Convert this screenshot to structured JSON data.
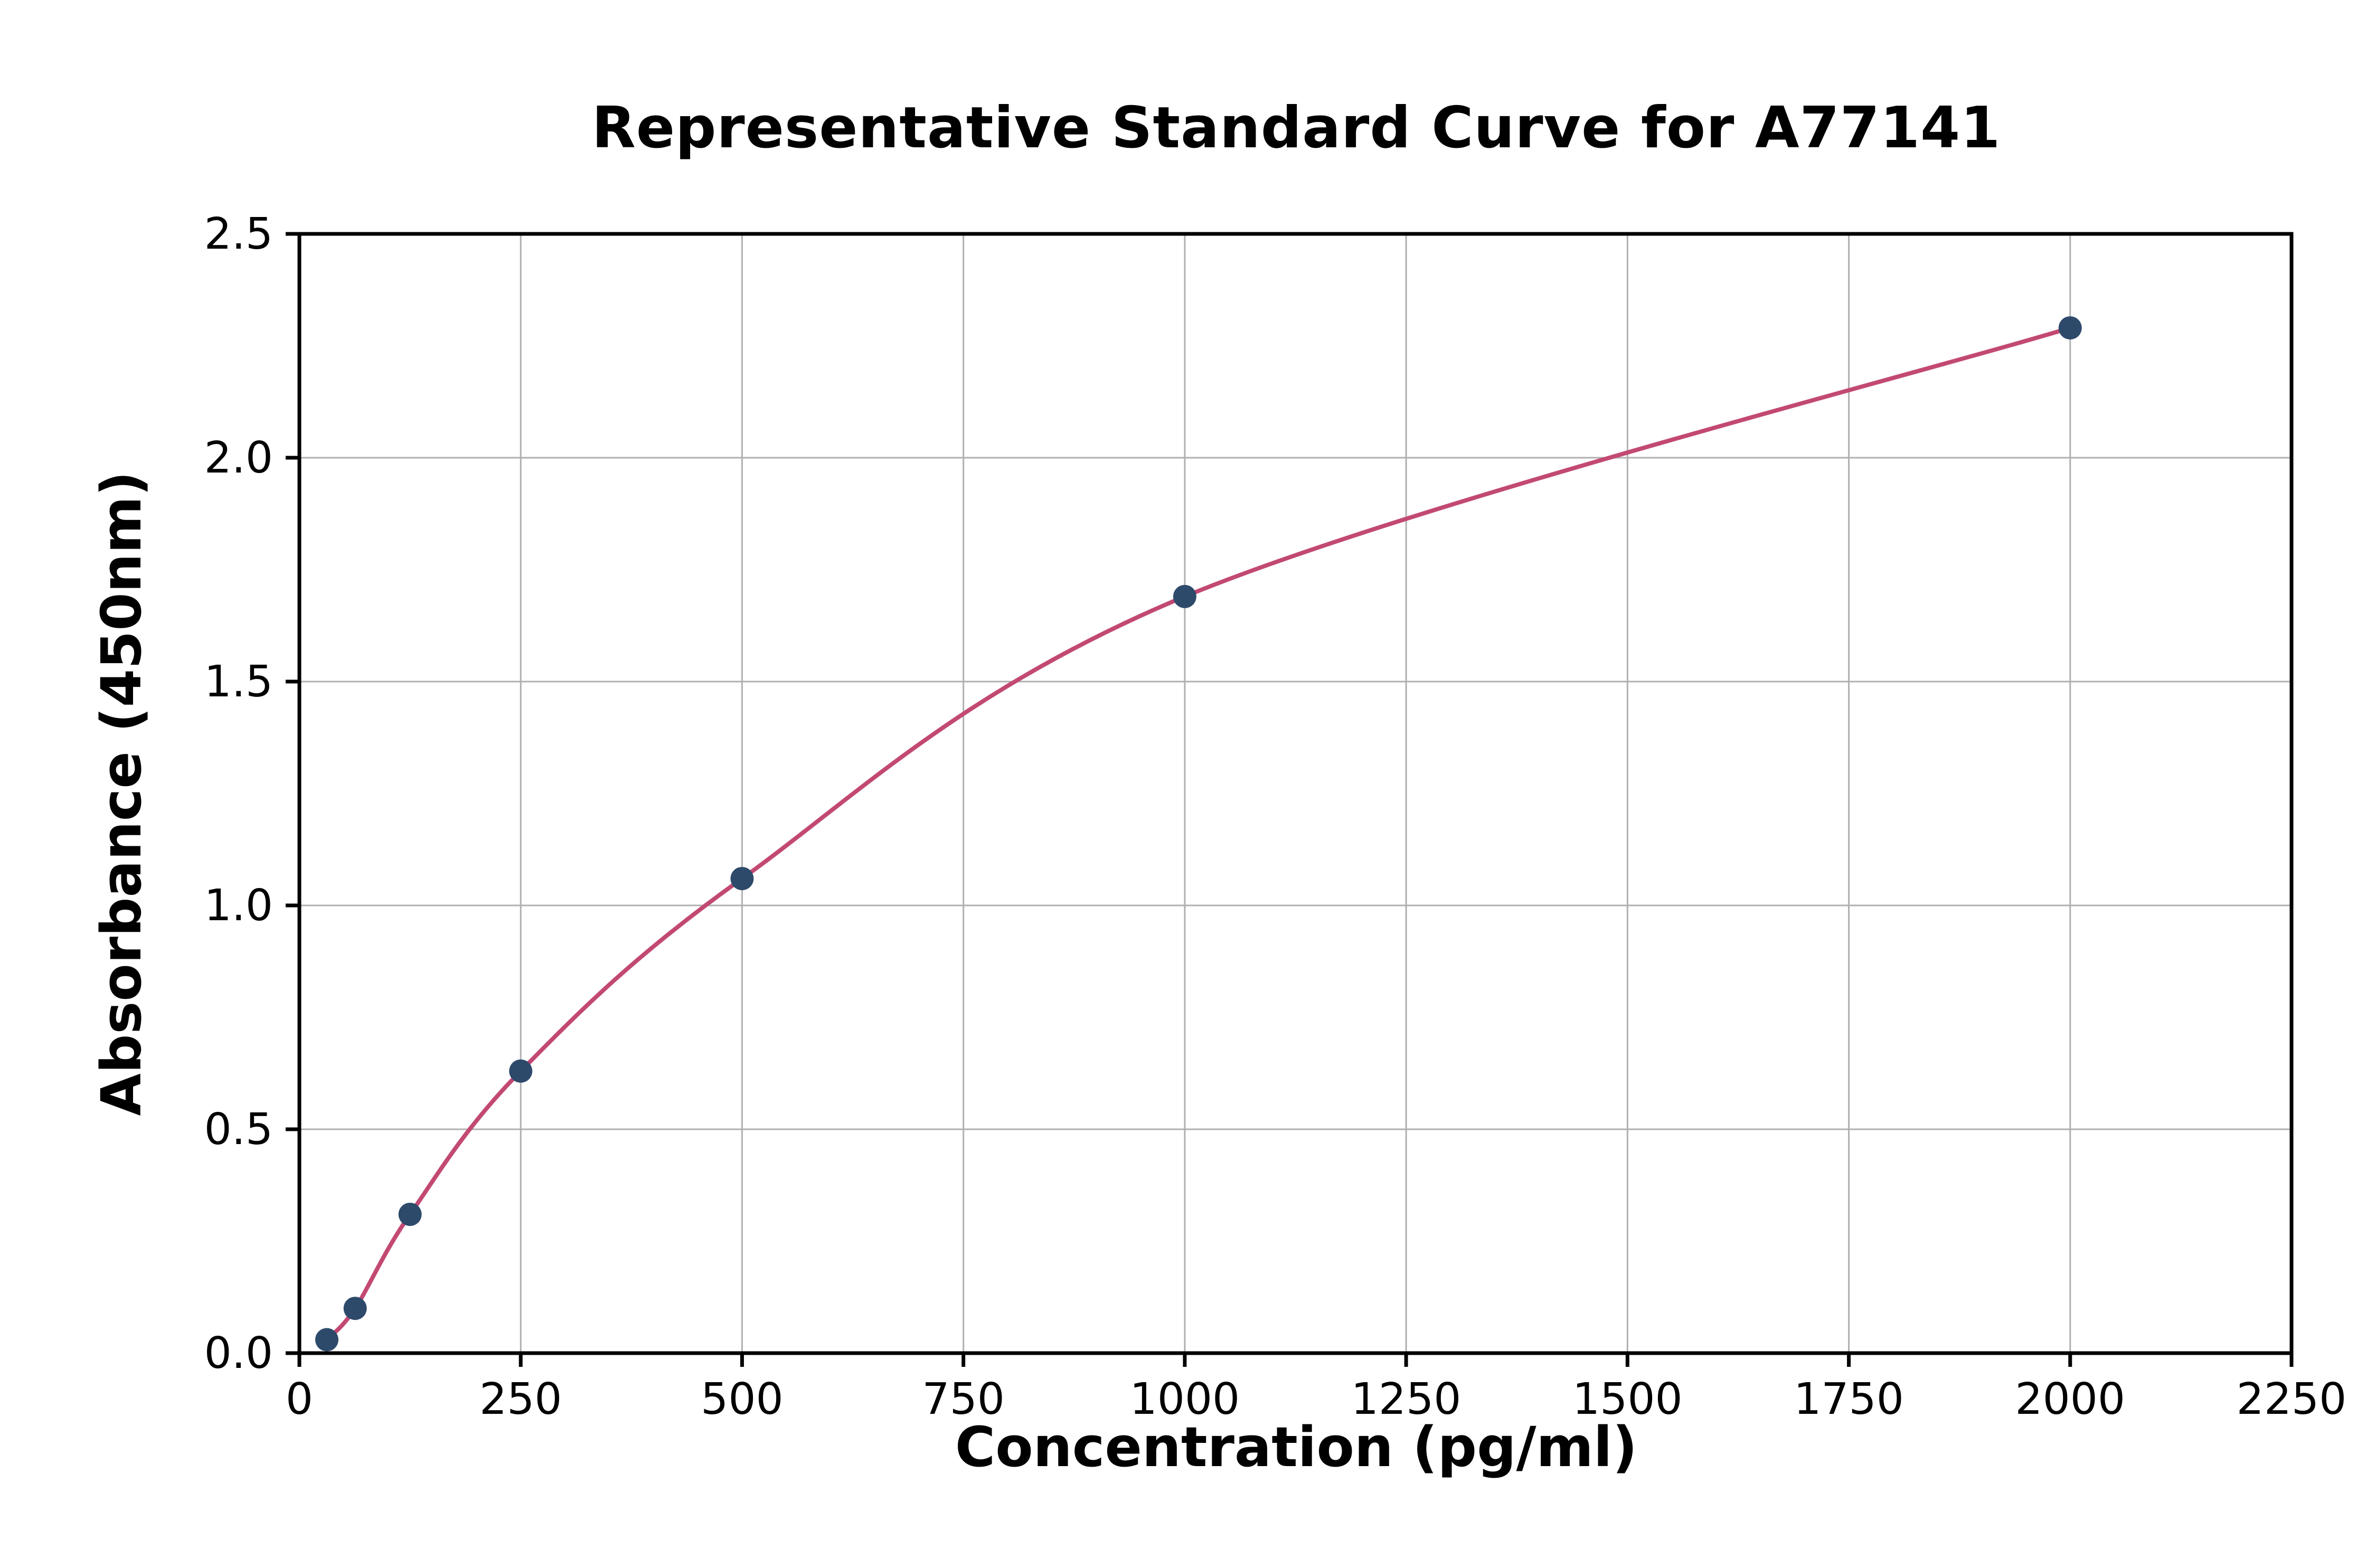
{
  "chart_data": {
    "type": "scatter",
    "title": "Representative Standard Curve for A77141",
    "xlabel": "Concentration (pg/ml)",
    "ylabel": "Absorbance (450nm)",
    "xlim": [
      0,
      2250
    ],
    "ylim": [
      0,
      2.5
    ],
    "x_ticks": [
      0,
      250,
      500,
      750,
      1000,
      1250,
      1500,
      1750,
      2000,
      2250
    ],
    "x_tick_labels": [
      "0",
      "250",
      "500",
      "750",
      "1000",
      "1250",
      "1500",
      "1750",
      "2000",
      "2250"
    ],
    "y_ticks": [
      0.0,
      0.5,
      1.0,
      1.5,
      2.0,
      2.5
    ],
    "y_tick_labels": [
      "0.0",
      "0.5",
      "1.0",
      "1.5",
      "2.0",
      "2.5"
    ],
    "grid": true,
    "legend": "none",
    "points": [
      {
        "x": 31,
        "y": 0.03
      },
      {
        "x": 63,
        "y": 0.1
      },
      {
        "x": 125,
        "y": 0.31
      },
      {
        "x": 250,
        "y": 0.63
      },
      {
        "x": 500,
        "y": 1.06
      },
      {
        "x": 1000,
        "y": 1.69
      },
      {
        "x": 2000,
        "y": 2.29
      }
    ],
    "curve": "smooth fit through points",
    "colors": {
      "curve": "#c24973",
      "points": "#2e4a6b",
      "grid": "#b0b0b0",
      "spine": "#000000",
      "background": "#ffffff"
    }
  }
}
